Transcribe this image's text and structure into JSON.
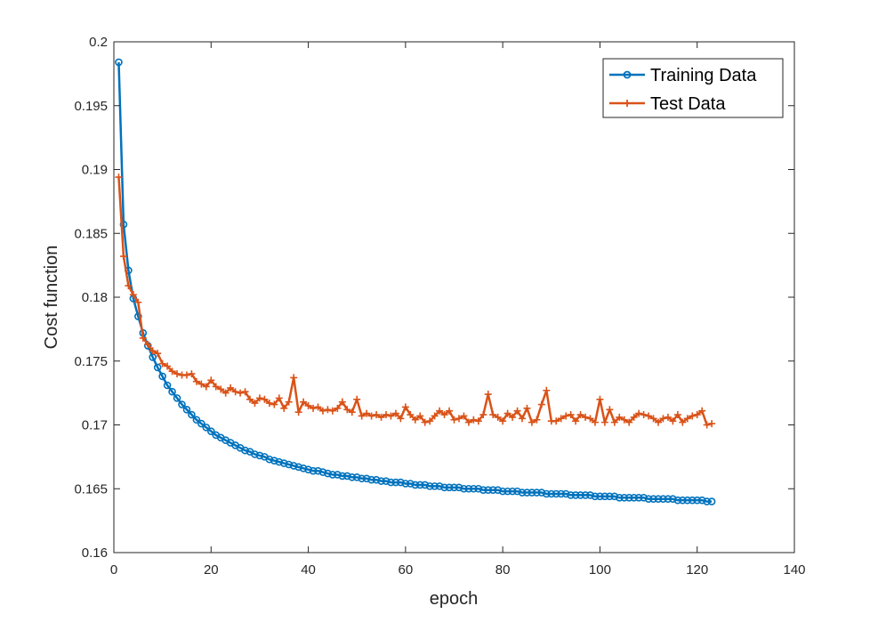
{
  "chart_data": {
    "type": "line",
    "title": "",
    "xlabel": "epoch",
    "ylabel": "Cost function",
    "xlim": [
      0,
      140
    ],
    "ylim": [
      0.16,
      0.2
    ],
    "xticks": [
      "0",
      "20",
      "40",
      "60",
      "80",
      "100",
      "120",
      "140"
    ],
    "yticks": [
      "0.16",
      "0.165",
      "0.17",
      "0.175",
      "0.18",
      "0.185",
      "0.19",
      "0.195",
      "0.2"
    ],
    "grid": false,
    "legend_position": "top-right",
    "series": [
      {
        "name": "Training Data",
        "color": "#0072BD",
        "marker": "circle",
        "x_start": 1,
        "x_step": 1,
        "values": [
          0.1984,
          0.1857,
          0.1821,
          0.1799,
          0.1785,
          0.1772,
          0.1762,
          0.1753,
          0.1745,
          0.1738,
          0.1731,
          0.1726,
          0.1721,
          0.1716,
          0.1712,
          0.1708,
          0.1704,
          0.1701,
          0.1698,
          0.1695,
          0.1692,
          0.169,
          0.1688,
          0.1686,
          0.1684,
          0.1682,
          0.168,
          0.1679,
          0.1677,
          0.1676,
          0.1675,
          0.1673,
          0.1672,
          0.1671,
          0.167,
          0.1669,
          0.1668,
          0.1667,
          0.1666,
          0.1665,
          0.1664,
          0.1664,
          0.1663,
          0.1662,
          0.1661,
          0.1661,
          0.166,
          0.166,
          0.1659,
          0.1659,
          0.1658,
          0.1658,
          0.1657,
          0.1657,
          0.1656,
          0.1656,
          0.1655,
          0.1655,
          0.1655,
          0.1654,
          0.1654,
          0.1653,
          0.1653,
          0.1653,
          0.1652,
          0.1652,
          0.1652,
          0.1651,
          0.1651,
          0.1651,
          0.1651,
          0.165,
          0.165,
          0.165,
          0.165,
          0.1649,
          0.1649,
          0.1649,
          0.1649,
          0.1648,
          0.1648,
          0.1648,
          0.1648,
          0.1647,
          0.1647,
          0.1647,
          0.1647,
          0.1647,
          0.1646,
          0.1646,
          0.1646,
          0.1646,
          0.1646,
          0.1645,
          0.1645,
          0.1645,
          0.1645,
          0.1645,
          0.1644,
          0.1644,
          0.1644,
          0.1644,
          0.1644,
          0.1643,
          0.1643,
          0.1643,
          0.1643,
          0.1643,
          0.1643,
          0.1642,
          0.1642,
          0.1642,
          0.1642,
          0.1642,
          0.1642,
          0.1641,
          0.1641,
          0.1641,
          0.1641,
          0.1641,
          0.1641,
          0.164,
          0.164
        ]
      },
      {
        "name": "Test Data",
        "color": "#D95319",
        "marker": "plus",
        "x_start": 1,
        "x_step": 1,
        "values": [
          0.1894,
          0.1832,
          0.1809,
          0.1802,
          0.1796,
          0.1768,
          0.1763,
          0.1758,
          0.1756,
          0.1748,
          0.1746,
          0.1742,
          0.174,
          0.1739,
          0.1739,
          0.174,
          0.1734,
          0.1732,
          0.173,
          0.1735,
          0.173,
          0.1728,
          0.1725,
          0.1729,
          0.1726,
          0.1725,
          0.1726,
          0.172,
          0.1717,
          0.1721,
          0.172,
          0.1717,
          0.1716,
          0.1721,
          0.1713,
          0.1718,
          0.1737,
          0.171,
          0.1718,
          0.1715,
          0.1713,
          0.1714,
          0.1711,
          0.1712,
          0.1711,
          0.1713,
          0.1718,
          0.1712,
          0.171,
          0.172,
          0.1707,
          0.1709,
          0.1707,
          0.1708,
          0.1706,
          0.1708,
          0.1707,
          0.1709,
          0.1705,
          0.1714,
          0.1708,
          0.1704,
          0.1707,
          0.1702,
          0.1703,
          0.1707,
          0.1711,
          0.1708,
          0.1711,
          0.1704,
          0.1705,
          0.1707,
          0.1702,
          0.1704,
          0.1703,
          0.1708,
          0.1724,
          0.1708,
          0.1706,
          0.1703,
          0.1709,
          0.1706,
          0.1711,
          0.1705,
          0.1713,
          0.1702,
          0.1704,
          0.1716,
          0.1727,
          0.1703,
          0.1703,
          0.1705,
          0.1707,
          0.1708,
          0.1703,
          0.1708,
          0.1706,
          0.1705,
          0.1702,
          0.172,
          0.1702,
          0.1712,
          0.1702,
          0.1706,
          0.1704,
          0.1702,
          0.1706,
          0.1709,
          0.1708,
          0.1707,
          0.1705,
          0.1702,
          0.1705,
          0.1706,
          0.1703,
          0.1708,
          0.1702,
          0.1705,
          0.1707,
          0.1708,
          0.1711,
          0.17,
          0.1701
        ]
      }
    ]
  }
}
